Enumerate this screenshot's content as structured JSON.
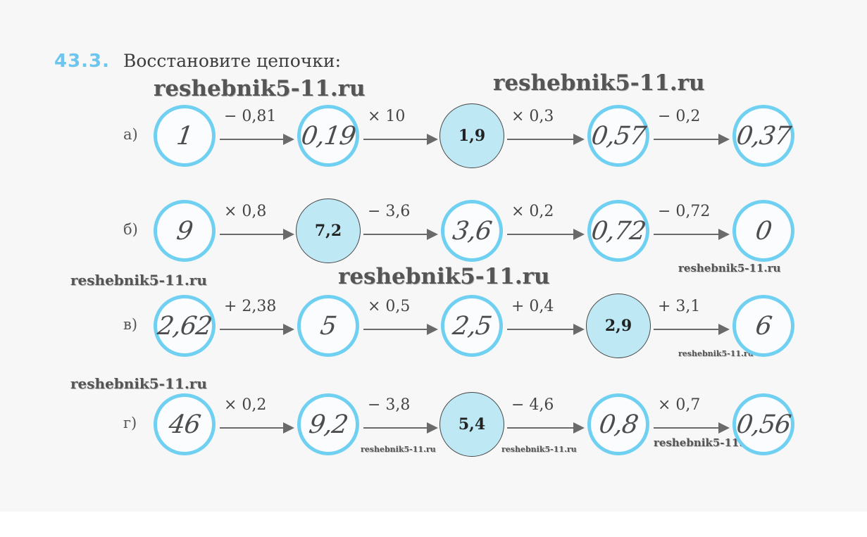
{
  "task": {
    "number": "43.3.",
    "title": "Восстановите цепочки:"
  },
  "watermark": "reshebnik5-11.ru",
  "chains": [
    {
      "label": "а)",
      "nodes": [
        {
          "value": "1",
          "given": false
        },
        {
          "value": "0,19",
          "given": false
        },
        {
          "value": "1,9",
          "given": true
        },
        {
          "value": "0,57",
          "given": false
        },
        {
          "value": "0,37",
          "given": false
        }
      ],
      "ops": [
        "− 0,81",
        "× 10",
        "× 0,3",
        "− 0,2"
      ]
    },
    {
      "label": "б)",
      "nodes": [
        {
          "value": "9",
          "given": false
        },
        {
          "value": "7,2",
          "given": true
        },
        {
          "value": "3,6",
          "given": false
        },
        {
          "value": "0,72",
          "given": false
        },
        {
          "value": "0",
          "given": false
        }
      ],
      "ops": [
        "× 0,8",
        "− 3,6",
        "× 0,2",
        "− 0,72"
      ]
    },
    {
      "label": "в)",
      "nodes": [
        {
          "value": "2,62",
          "given": false
        },
        {
          "value": "5",
          "given": false
        },
        {
          "value": "2,5",
          "given": false
        },
        {
          "value": "2,9",
          "given": true
        },
        {
          "value": "6",
          "given": false
        }
      ],
      "ops": [
        "+ 2,38",
        "× 0,5",
        "+ 0,4",
        "+ 3,1"
      ]
    },
    {
      "label": "г)",
      "nodes": [
        {
          "value": "46",
          "given": false
        },
        {
          "value": "9,2",
          "given": false
        },
        {
          "value": "5,4",
          "given": true
        },
        {
          "value": "0,8",
          "given": false
        },
        {
          "value": "0,56",
          "given": false
        }
      ],
      "ops": [
        "× 0,2",
        "− 3,8",
        "− 4,6",
        "× 0,7"
      ]
    }
  ]
}
